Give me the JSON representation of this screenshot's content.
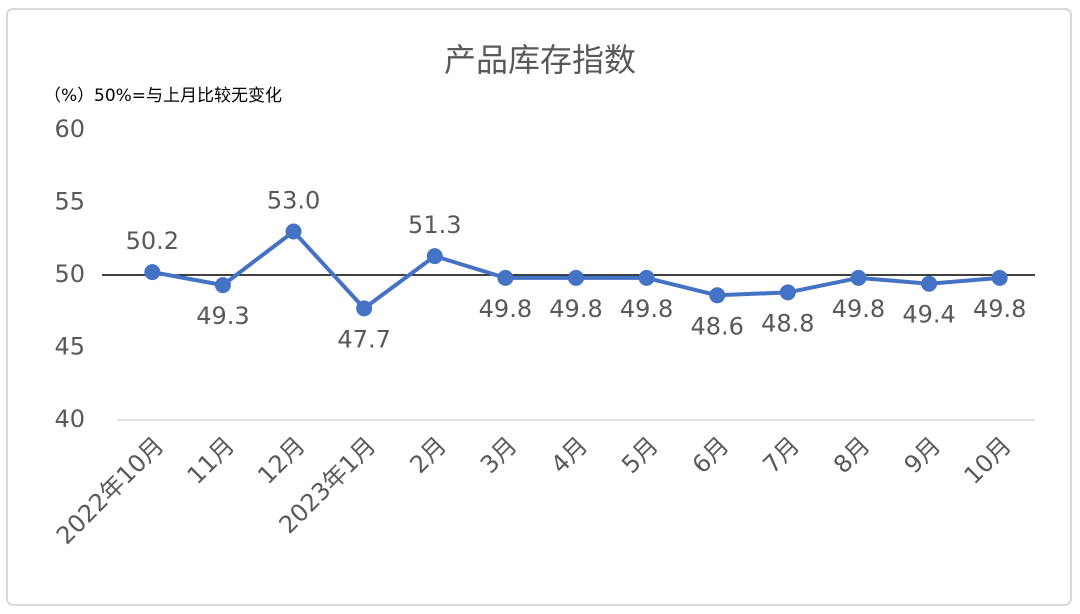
{
  "chart_data": {
    "type": "line",
    "title": "产品库存指数",
    "y_unit": "（%）",
    "annotation": "50%=与上月比较无变化",
    "categories": [
      "2022年10月",
      "11月",
      "12月",
      "2023年1月",
      "2月",
      "3月",
      "4月",
      "5月",
      "6月",
      "7月",
      "8月",
      "9月",
      "10月"
    ],
    "series": [
      {
        "name": "产品库存指数",
        "color": "#4472c4",
        "values": [
          50.2,
          49.3,
          53.0,
          47.7,
          51.3,
          49.8,
          49.8,
          49.8,
          48.6,
          48.8,
          49.8,
          49.4,
          49.8
        ],
        "value_labels": [
          "50.2",
          "49.3",
          "53.0",
          "47.7",
          "51.3",
          "49.8",
          "49.8",
          "49.8",
          "48.6",
          "48.8",
          "49.8",
          "49.4",
          "49.8"
        ]
      }
    ],
    "reference_line": 50,
    "reference_color": "#000000",
    "ylim": [
      40,
      60
    ],
    "yticks": [
      40,
      45,
      50,
      55,
      60
    ],
    "grid": false
  }
}
